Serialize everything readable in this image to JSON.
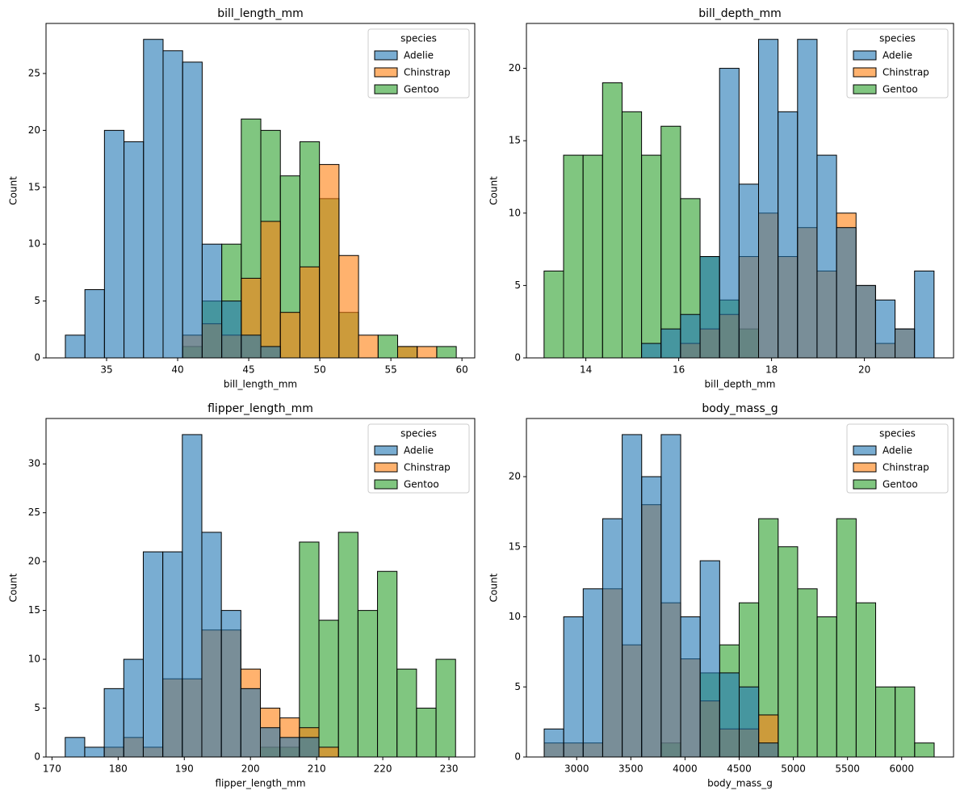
{
  "chart_data": [
    {
      "type": "histogram",
      "title": "bill_length_mm",
      "xlabel": "bill_length_mm",
      "ylabel": "Count",
      "bins": [
        32.1,
        33.475,
        34.85,
        36.225,
        37.6,
        38.975,
        40.35,
        41.725,
        43.1,
        44.475,
        45.85,
        47.225,
        48.6,
        49.975,
        51.35,
        52.725,
        54.1,
        55.475,
        56.85,
        58.225,
        59.6
      ],
      "series": [
        {
          "name": "Adelie",
          "color": "#1f77b4",
          "values": [
            2,
            6,
            20,
            19,
            28,
            27,
            26,
            10,
            5,
            2,
            1,
            0,
            0,
            0,
            0,
            0,
            0,
            0,
            0,
            0
          ]
        },
        {
          "name": "Chinstrap",
          "color": "#ff7f0e",
          "values": [
            0,
            0,
            0,
            0,
            0,
            0,
            2,
            3,
            2,
            7,
            12,
            4,
            8,
            17,
            9,
            2,
            0,
            1,
            1,
            0
          ]
        },
        {
          "name": "Gentoo",
          "color": "#2ca02c",
          "values": [
            0,
            0,
            0,
            0,
            0,
            0,
            1,
            5,
            10,
            21,
            20,
            16,
            19,
            14,
            4,
            0,
            2,
            1,
            0,
            1
          ]
        }
      ],
      "xlim": [
        30.74,
        60.9
      ],
      "ylim": [
        0,
        29.4
      ],
      "xticks": [
        35,
        40,
        45,
        50,
        55,
        60
      ],
      "yticks": [
        0,
        5,
        10,
        15,
        20,
        25
      ],
      "legend_title": "species",
      "legend": "upper right"
    },
    {
      "type": "histogram",
      "title": "bill_depth_mm",
      "xlabel": "bill_depth_mm",
      "ylabel": "Count",
      "bins": [
        13.1,
        13.52,
        13.94,
        14.36,
        14.78,
        15.2,
        15.62,
        16.04,
        16.46,
        16.88,
        17.3,
        17.72,
        18.14,
        18.56,
        18.98,
        19.4,
        19.82,
        20.24,
        20.66,
        21.08,
        21.5
      ],
      "series": [
        {
          "name": "Adelie",
          "color": "#1f77b4",
          "values": [
            0,
            0,
            0,
            0,
            0,
            1,
            2,
            3,
            7,
            20,
            12,
            22,
            17,
            22,
            14,
            9,
            5,
            4,
            2,
            6
          ]
        },
        {
          "name": "Chinstrap",
          "color": "#ff7f0e",
          "values": [
            0,
            0,
            0,
            0,
            0,
            0,
            0,
            1,
            2,
            3,
            7,
            10,
            7,
            9,
            6,
            10,
            5,
            1,
            2,
            0
          ]
        },
        {
          "name": "Gentoo",
          "color": "#2ca02c",
          "values": [
            6,
            14,
            14,
            19,
            17,
            14,
            16,
            11,
            7,
            4,
            2,
            0,
            0,
            0,
            0,
            0,
            0,
            0,
            0,
            0
          ]
        }
      ],
      "xlim": [
        12.72,
        21.92
      ],
      "ylim": [
        0,
        23.1
      ],
      "xticks": [
        14,
        16,
        18,
        20
      ],
      "yticks": [
        0,
        5,
        10,
        15,
        20
      ],
      "legend_title": "species",
      "legend": "upper right"
    },
    {
      "type": "histogram",
      "title": "flipper_length_mm",
      "xlabel": "flipper_length_mm",
      "ylabel": "Count",
      "bins": [
        172,
        174.95,
        177.9,
        180.85,
        183.8,
        186.75,
        189.7,
        192.65,
        195.6,
        198.55,
        201.5,
        204.45,
        207.4,
        210.35,
        213.3,
        216.25,
        219.2,
        222.15,
        225.1,
        228.05,
        231
      ],
      "series": [
        {
          "name": "Adelie",
          "color": "#1f77b4",
          "values": [
            2,
            1,
            7,
            10,
            21,
            21,
            33,
            23,
            15,
            7,
            3,
            2,
            2,
            0,
            0,
            0,
            0,
            0,
            0,
            0
          ]
        },
        {
          "name": "Chinstrap",
          "color": "#ff7f0e",
          "values": [
            0,
            0,
            1,
            2,
            1,
            8,
            8,
            13,
            13,
            9,
            5,
            4,
            3,
            1,
            0,
            0,
            0,
            0,
            0,
            0
          ]
        },
        {
          "name": "Gentoo",
          "color": "#2ca02c",
          "values": [
            0,
            0,
            0,
            0,
            0,
            0,
            0,
            0,
            0,
            0,
            1,
            1,
            22,
            14,
            23,
            15,
            19,
            9,
            5,
            10
          ]
        }
      ],
      "xlim": [
        169.1,
        233.9
      ],
      "ylim": [
        0,
        34.65
      ],
      "xticks": [
        170,
        180,
        190,
        200,
        210,
        220,
        230
      ],
      "yticks": [
        0,
        5,
        10,
        15,
        20,
        25,
        30
      ],
      "legend_title": "species",
      "legend": "upper right"
    },
    {
      "type": "histogram",
      "title": "body_mass_g",
      "xlabel": "body_mass_g",
      "ylabel": "Count",
      "bins": [
        2700,
        2880,
        3060,
        3240,
        3420,
        3600,
        3780,
        3960,
        4140,
        4320,
        4500,
        4680,
        4860,
        5040,
        5220,
        5400,
        5580,
        5760,
        5940,
        6120,
        6300
      ],
      "series": [
        {
          "name": "Adelie",
          "color": "#1f77b4",
          "values": [
            2,
            10,
            12,
            17,
            23,
            20,
            23,
            10,
            14,
            6,
            5,
            1,
            0,
            0,
            0,
            0,
            0,
            0,
            0,
            0
          ]
        },
        {
          "name": "Chinstrap",
          "color": "#ff7f0e",
          "values": [
            1,
            1,
            1,
            12,
            8,
            18,
            11,
            7,
            4,
            2,
            2,
            3,
            0,
            0,
            0,
            0,
            0,
            0,
            0,
            0
          ]
        },
        {
          "name": "Gentoo",
          "color": "#2ca02c",
          "values": [
            0,
            0,
            0,
            0,
            0,
            0,
            1,
            0,
            6,
            8,
            11,
            17,
            15,
            12,
            10,
            17,
            11,
            5,
            5,
            1
          ]
        }
      ],
      "xlim": [
        2536,
        6479
      ],
      "ylim": [
        0,
        24.15
      ],
      "xticks": [
        3000,
        3500,
        4000,
        4500,
        5000,
        5500,
        6000
      ],
      "yticks": [
        0,
        5,
        10,
        15,
        20
      ],
      "legend_title": "species",
      "legend": "upper right"
    }
  ]
}
